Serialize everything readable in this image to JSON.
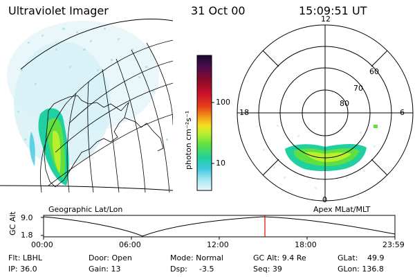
{
  "header": {
    "instrument": "Ultraviolet Imager",
    "date": "31 Oct 00",
    "time": "15:09:51 UT"
  },
  "colorbar": {
    "unit_label": "photon cm⁻²s⁻¹",
    "ticks": [
      "100",
      "10"
    ],
    "colors": [
      "#1a0a2e",
      "#4a0c4e",
      "#8a0a2a",
      "#c8102a",
      "#e8401a",
      "#f4a018",
      "#f4e020",
      "#b8f030",
      "#60e040",
      "#20d0a0",
      "#40c8e0",
      "#a8e8f0",
      "#e8f8fc"
    ]
  },
  "left_panel": {
    "label": "Geographic Lat/Lon"
  },
  "right_panel": {
    "label": "Apex MLat/MLT",
    "mlt_labels": [
      "12",
      "18",
      "6",
      "0"
    ],
    "lat_labels": [
      "60",
      "70",
      "80"
    ]
  },
  "altitude_plot": {
    "ylabel": "GC Alt",
    "yticks": [
      "9.0",
      "1.8"
    ],
    "xticks": [
      "00:00",
      "06:00",
      "12:00",
      "18:00",
      "23:59"
    ],
    "current_time_marker": "15:09:51",
    "marker_color": "#e00000"
  },
  "footer": {
    "filter": "Flt: LBHL",
    "ip": "IP: 36.0",
    "door": "Door: Open",
    "gain": "Gain: 13",
    "mode": "Mode: Normal",
    "dsp": "Dsp:",
    "dsp_value": "-3.5",
    "gc_alt": "GC Alt: 9.4 Re",
    "seq": "Seq: 39",
    "glat": "GLat:",
    "glat_value": "49.9",
    "glon": "GLon: 136.8"
  }
}
